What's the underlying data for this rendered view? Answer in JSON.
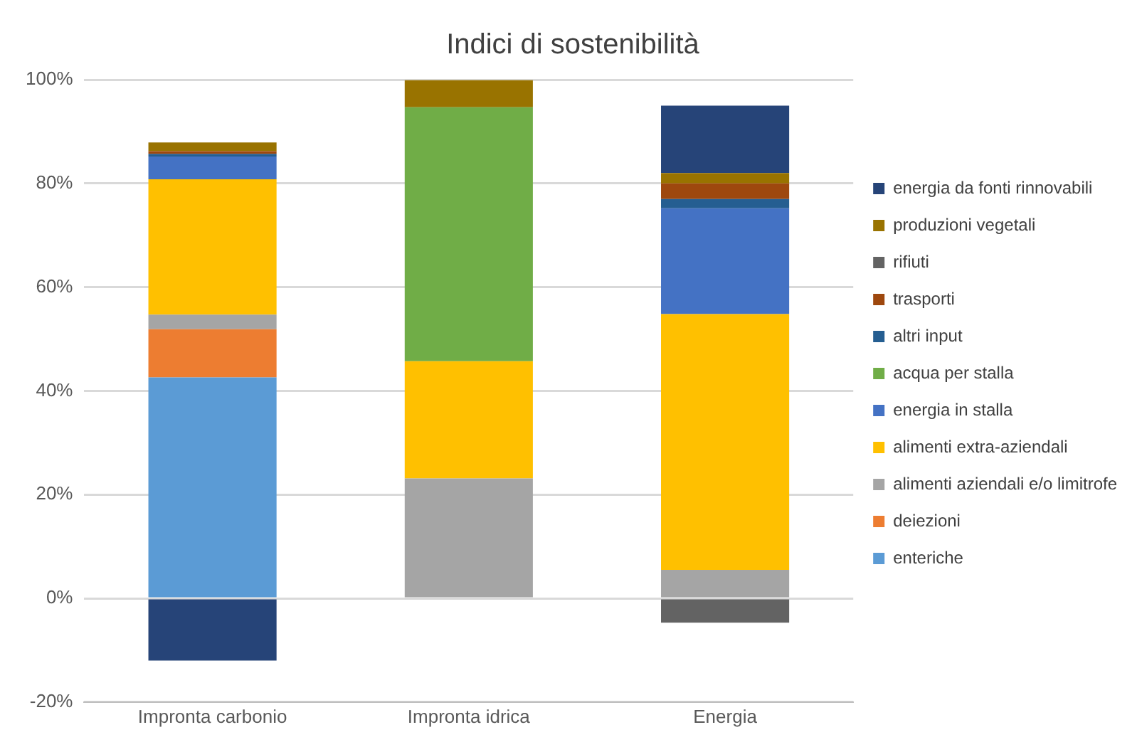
{
  "chart_data": {
    "type": "bar",
    "stacked": true,
    "title": "Indici di sostenibilità",
    "categories": [
      "Impronta carbonio",
      "Impronta idrica",
      "Energia"
    ],
    "series": [
      {
        "name": "enteriche",
        "color": "#5b9bd5",
        "values": [
          42.6,
          null,
          null
        ]
      },
      {
        "name": "deiezioni",
        "color": "#ed7d31",
        "values": [
          9.3,
          null,
          null
        ]
      },
      {
        "name": "alimenti aziendali e/o limitrofe",
        "color": "#a5a5a5",
        "values": [
          2.8,
          23.1,
          5.5
        ]
      },
      {
        "name": "alimenti extra-aziendali",
        "color": "#ffc000",
        "values": [
          26.1,
          22.6,
          49.3
        ]
      },
      {
        "name": "energia in stalla",
        "color": "#4472c4",
        "values": [
          4.4,
          null,
          20.4
        ]
      },
      {
        "name": "acqua per stalla",
        "color": "#70ad47",
        "values": [
          null,
          49.0,
          null
        ]
      },
      {
        "name": "altri input",
        "color": "#255e91",
        "values": [
          0.5,
          null,
          1.8
        ]
      },
      {
        "name": "trasporti",
        "color": "#9e480e",
        "values": [
          0.5,
          null,
          3.0
        ]
      },
      {
        "name": "rifiuti",
        "color": "#636363",
        "values": [
          null,
          null,
          -4.7
        ]
      },
      {
        "name": "produzioni vegetali",
        "color": "#997300",
        "values": [
          1.7,
          5.2,
          2.0
        ]
      },
      {
        "name": "energia da fonti rinnovabili",
        "color": "#264478",
        "values": [
          -12.0,
          null,
          13.0
        ]
      }
    ],
    "ylim": [
      -20,
      100
    ],
    "yticks": [
      {
        "value": -20,
        "label": "-20%"
      },
      {
        "value": 0,
        "label": "0%"
      },
      {
        "value": 20,
        "label": "20%"
      },
      {
        "value": 40,
        "label": "40%"
      },
      {
        "value": 60,
        "label": "60%"
      },
      {
        "value": 80,
        "label": "80%"
      },
      {
        "value": 100,
        "label": "100%"
      }
    ],
    "grid": "y",
    "legend": "right"
  }
}
